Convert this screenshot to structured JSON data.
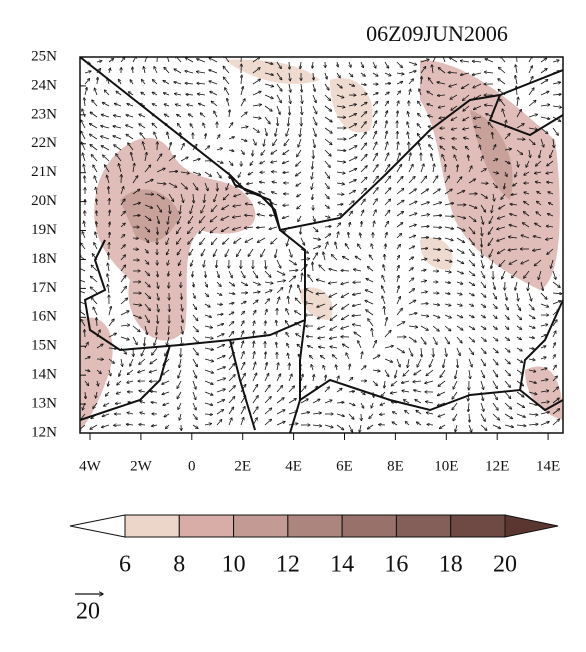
{
  "title": "06Z09JUN2006",
  "lat_labels": [
    "25N",
    "24N",
    "23N",
    "22N",
    "21N",
    "20N",
    "19N",
    "18N",
    "17N",
    "16N",
    "15N",
    "14N",
    "13N",
    "12N"
  ],
  "lon_labels": [
    "4W",
    "2W",
    "0",
    "2E",
    "4E",
    "6E",
    "8E",
    "10E",
    "12E",
    "14E"
  ],
  "colorbar": {
    "levels": [
      6,
      8,
      10,
      12,
      14,
      16,
      18,
      20
    ],
    "colors": [
      "#ffffff",
      "#ecd6ca",
      "#d8aca7",
      "#c39a94",
      "#ad857f",
      "#98716a",
      "#845e58",
      "#6f4a45",
      "#5b3631"
    ]
  },
  "reference_vector": {
    "label": "20"
  }
}
